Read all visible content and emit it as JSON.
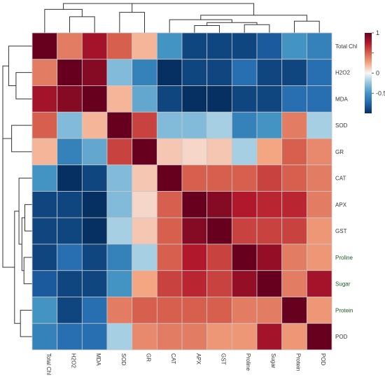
{
  "chart_data": {
    "type": "heatmap",
    "title": "",
    "variables": [
      "Total Chl",
      "H2O2",
      "MDA",
      "SOD",
      "GR",
      "CAT",
      "APX",
      "GST",
      "Proline",
      "Sugar",
      "Protein",
      "POD"
    ],
    "row_label_colors": [
      "#333333",
      "#333333",
      "#333333",
      "#333333",
      "#333333",
      "#333333",
      "#333333",
      "#333333",
      "#1a5a1a",
      "#1a5a1a",
      "#1a5a1a",
      "#333333"
    ],
    "values": [
      [
        1.0,
        0.4,
        0.8,
        0.5,
        0.2,
        -0.5,
        -0.9,
        -0.9,
        -0.9,
        -0.8,
        -0.5,
        -0.6
      ],
      [
        0.4,
        1.0,
        0.9,
        -0.3,
        -0.6,
        -1.0,
        -0.9,
        -0.9,
        -0.7,
        -0.9,
        -0.9,
        -0.7
      ],
      [
        0.8,
        0.9,
        1.0,
        0.2,
        -0.4,
        -0.9,
        -1.0,
        -1.0,
        -0.9,
        -0.9,
        -0.7,
        -0.7
      ],
      [
        0.5,
        -0.3,
        0.2,
        1.0,
        0.6,
        -0.3,
        -0.3,
        -0.2,
        -0.6,
        -0.5,
        0.4,
        -0.2
      ],
      [
        0.2,
        -0.6,
        -0.4,
        0.6,
        1.0,
        0.15,
        0.1,
        0.15,
        -0.2,
        0.25,
        0.5,
        0.35
      ],
      [
        -0.5,
        -1.0,
        -0.9,
        -0.3,
        0.15,
        1.0,
        0.5,
        0.5,
        0.5,
        0.6,
        0.5,
        0.4
      ],
      [
        -0.9,
        -0.9,
        -1.0,
        -0.3,
        0.1,
        0.5,
        1.0,
        0.9,
        0.75,
        0.7,
        0.7,
        0.4
      ],
      [
        -0.9,
        -0.9,
        -1.0,
        -0.2,
        0.15,
        0.5,
        0.9,
        1.0,
        0.6,
        0.6,
        0.6,
        0.3
      ],
      [
        -0.9,
        -0.7,
        -0.9,
        -0.6,
        -0.2,
        0.5,
        0.75,
        0.6,
        1.0,
        0.85,
        0.4,
        0.3
      ],
      [
        -0.8,
        -0.9,
        -0.9,
        -0.5,
        0.25,
        0.6,
        0.7,
        0.6,
        0.85,
        1.0,
        0.4,
        0.8
      ],
      [
        -0.5,
        -0.9,
        -0.7,
        0.4,
        0.5,
        0.5,
        0.5,
        0.5,
        0.4,
        0.4,
        1.0,
        0.3
      ],
      [
        -0.6,
        -0.7,
        -0.7,
        -0.2,
        0.35,
        0.4,
        0.4,
        0.3,
        0.3,
        0.8,
        0.3,
        1.0
      ]
    ],
    "color_scale": {
      "min": -1,
      "max": 1,
      "stops": [
        "#053061",
        "#2166ac",
        "#4393c3",
        "#92c5de",
        "#f7f7f7",
        "#f4a582",
        "#d6604d",
        "#b2182b",
        "#67001f"
      ],
      "ticks": [
        1,
        0.5,
        0,
        -0.5
      ],
      "tick_labels": [
        "1",
        "",
        "0",
        "-0.5"
      ]
    },
    "legend_position": "top-right",
    "grid": true
  }
}
